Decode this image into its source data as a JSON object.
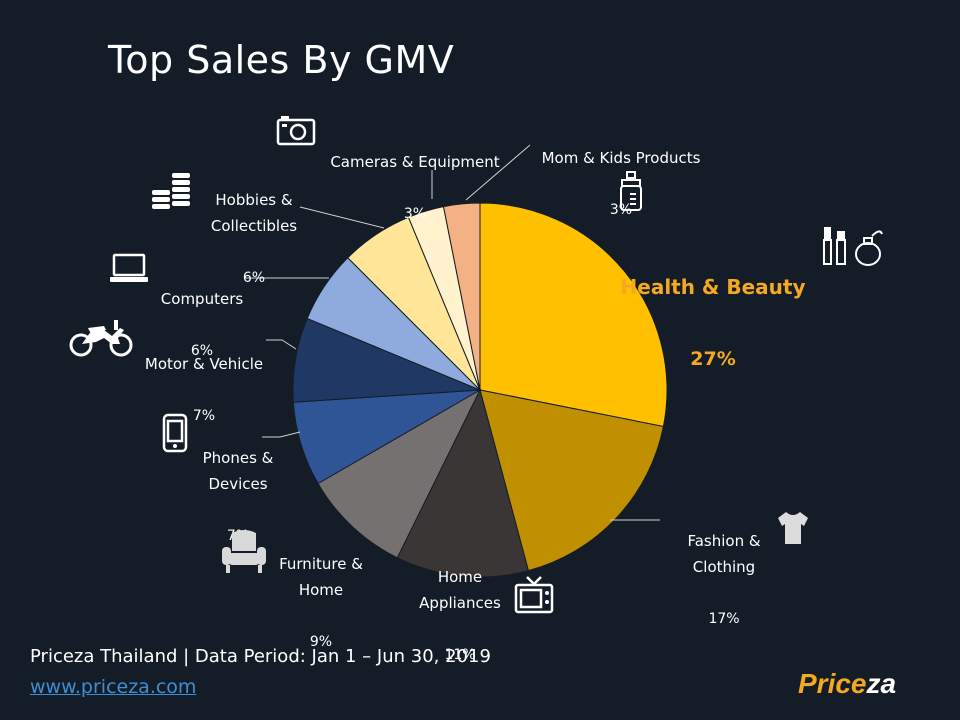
{
  "title": "Top Sales By GMV",
  "footer": {
    "source": "Priceza Thailand | Data Period: Jan 1 – Jun 30, 2019",
    "link": "www.priceza.com",
    "logo_part1": "Price",
    "logo_part2": "za"
  },
  "chart_data": {
    "type": "pie",
    "title": "Top Sales By GMV",
    "slices": [
      {
        "label": "Health & Beauty",
        "value": 27,
        "display": "27%",
        "color": "#ffc000",
        "highlight": true
      },
      {
        "label": "Fashion & Clothing",
        "value": 17,
        "display": "17%",
        "color": "#c09000"
      },
      {
        "label": "Home Appliances",
        "value": 11,
        "display": "11%",
        "color": "#3a3636"
      },
      {
        "label": "Furniture & Home",
        "value": 9,
        "display": "9%",
        "color": "#767171"
      },
      {
        "label": "Phones & Devices",
        "value": 7,
        "display": "7%",
        "color": "#2f5597"
      },
      {
        "label": "Motor & Vehicle",
        "value": 7,
        "display": "7%",
        "color": "#1f3864"
      },
      {
        "label": "Computers",
        "value": 6,
        "display": "6%",
        "color": "#8faadc"
      },
      {
        "label": "Hobbies & Collectibles",
        "value": 6,
        "display": "6%",
        "color": "#ffe699"
      },
      {
        "label": "Cameras & Equipment",
        "value": 3,
        "display": "3%",
        "color": "#fff2cc"
      },
      {
        "label": "Mom & Kids Products",
        "value": 3,
        "display": "3%",
        "color": "#f4b183"
      }
    ],
    "labels": {
      "health": {
        "line1": "Health & Beauty",
        "pct": "27%"
      },
      "fashion": {
        "line1": "Fashion &\nClothing",
        "pct": "17%"
      },
      "home_app": {
        "line1": "Home\nAppliances",
        "pct": "11%"
      },
      "furniture": {
        "line1": "Furniture &\nHome",
        "pct": "9%"
      },
      "phones": {
        "line1": "Phones &\nDevices",
        "pct": "7%"
      },
      "motor": {
        "line1": "Motor & Vehicle",
        "pct": "7%"
      },
      "computers": {
        "line1": "Computers",
        "pct": "6%"
      },
      "hobbies": {
        "line1": "Hobbies &\nCollectibles",
        "pct": "6%"
      },
      "cameras": {
        "line1": "Cameras & Equipment",
        "pct": "3%"
      },
      "mom": {
        "line1": "Mom & Kids Products",
        "pct": "3%"
      }
    },
    "icons": [
      "cosmetics-icon",
      "tshirt-icon",
      "tv-icon",
      "armchair-icon",
      "phone-icon",
      "motorcycle-icon",
      "laptop-icon",
      "coins-icon",
      "camera-icon",
      "baby-bottle-icon"
    ]
  }
}
